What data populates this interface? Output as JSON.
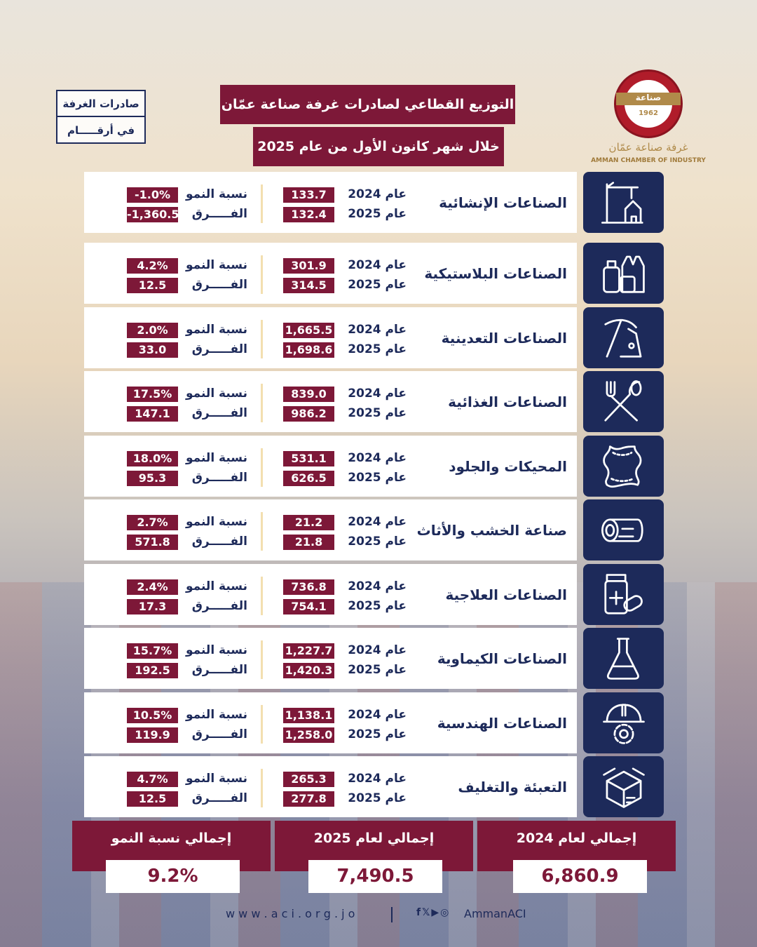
{
  "header": {
    "title_line1": "التوزيع القطاعي لصادرات غرفة صناعة عمّان",
    "title_line2": "خلال شهر كانون الأول من عام 2025",
    "badge_line1": "صادرات الغرفة",
    "badge_line2": "في أرقـــــام"
  },
  "logo": {
    "ar": "غرفة صناعة عمّان",
    "en": "AMMAN CHAMBER OF INDUSTRY",
    "mark": "صناعة",
    "est": "1962"
  },
  "labels": {
    "y2024": "عام 2024",
    "y2025": "عام 2025",
    "growth": "نسبة النمو",
    "diff": "الفـــــرق"
  },
  "sectors": [
    {
      "name": "الصناعات الإنشائية",
      "icon": "construction-crane-icon",
      "v2024": "133.7",
      "v2025": "132.4",
      "growth": "-1.0%",
      "diff": "-1,360.5"
    },
    {
      "name": "الصناعات البلاستيكية",
      "icon": "plastic-containers-icon",
      "v2024": "301.9",
      "v2025": "314.5",
      "growth": "4.2%",
      "diff": "12.5"
    },
    {
      "name": "الصناعات التعدينية",
      "icon": "pickaxe-icon",
      "v2024": "1,665.5",
      "v2025": "1,698.6",
      "growth": "2.0%",
      "diff": "33.0"
    },
    {
      "name": "الصناعات الغذائية",
      "icon": "fork-spoon-icon",
      "v2024": "839.0",
      "v2025": "986.2",
      "growth": "17.5%",
      "diff": "147.1"
    },
    {
      "name": "المحيكات والجلود",
      "icon": "leather-hide-icon",
      "v2024": "531.1",
      "v2025": "626.5",
      "growth": "18.0%",
      "diff": "95.3"
    },
    {
      "name": "صناعة الخشب والأثاث",
      "icon": "wood-log-icon",
      "v2024": "21.2",
      "v2025": "21.8",
      "growth": "2.7%",
      "diff": "571.8"
    },
    {
      "name": "الصناعات العلاجية",
      "icon": "medicine-bottle-icon",
      "v2024": "736.8",
      "v2025": "754.1",
      "growth": "2.4%",
      "diff": "17.3"
    },
    {
      "name": "الصناعات الكيماوية",
      "icon": "flask-icon",
      "v2024": "1,227.7",
      "v2025": "1,420.3",
      "growth": "15.7%",
      "diff": "192.5"
    },
    {
      "name": "الصناعات الهندسية",
      "icon": "helmet-gear-icon",
      "v2024": "1,138.1",
      "v2025": "1,258.0",
      "growth": "10.5%",
      "diff": "119.9"
    },
    {
      "name": "التعبئة والتغليف",
      "icon": "package-box-icon",
      "v2024": "265.3",
      "v2025": "277.8",
      "growth": "4.7%",
      "diff": "12.5"
    }
  ],
  "totals": [
    {
      "label": "إجمالي لعام 2024",
      "value": "6,860.9"
    },
    {
      "label": "إجمالي لعام 2025",
      "value": "7,490.5"
    },
    {
      "label": "إجمالي نسبة النمو",
      "value": "9.2%"
    }
  ],
  "footer": {
    "website": "w w w . a c i . o r g . j o",
    "handle": "AmmanACI",
    "social_icons": [
      "facebook-icon",
      "x-icon",
      "youtube-icon",
      "instagram-icon"
    ]
  },
  "colors": {
    "maroon": "#7d1838",
    "navy": "#1d2a5a",
    "gold": "#b08a4a"
  }
}
